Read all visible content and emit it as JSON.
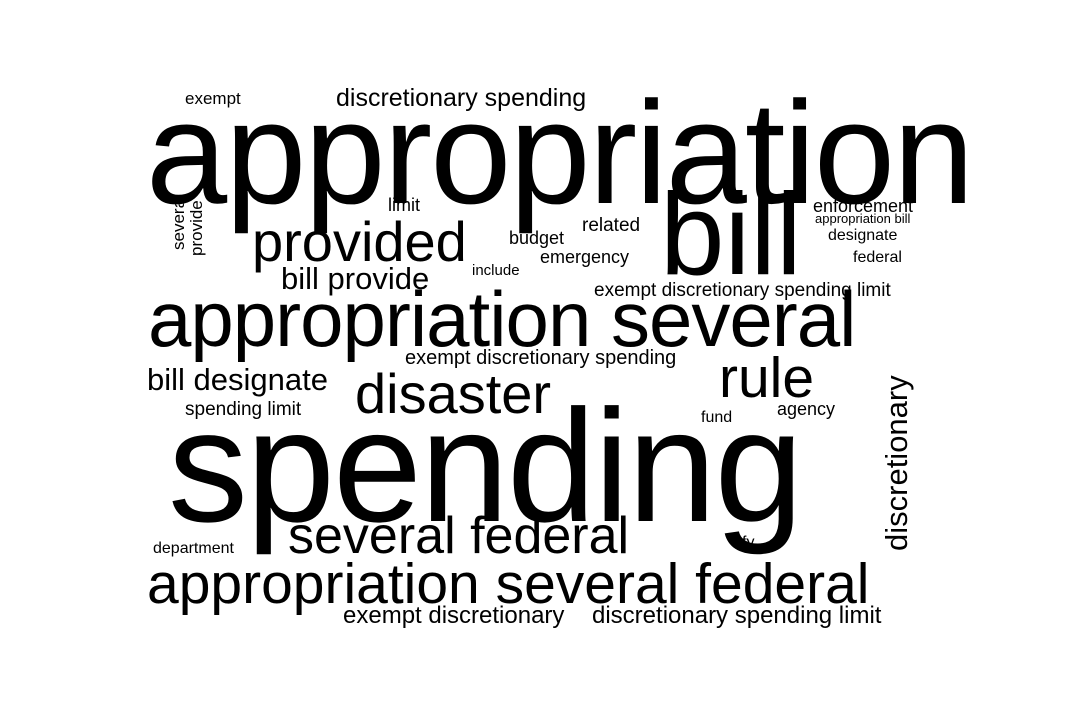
{
  "cloud": {
    "text_color": "#000000",
    "background": "#ffffff",
    "words": [
      "exempt",
      "discretionary spending",
      "appropriation",
      "several",
      "provide",
      "limit",
      "bill",
      "enforcement",
      "appropriation bill",
      "designate",
      "related",
      "provided",
      "budget",
      "emergency",
      "federal",
      "bill provide",
      "include",
      "exempt discretionary spending limit",
      "appropriation several",
      "exempt discretionary spending",
      "rule",
      "bill designate",
      "disaster",
      "discretionary",
      "spending limit",
      "agency",
      "fund",
      "spending",
      "several federal",
      "department",
      "fy",
      "appropriation several federal",
      "exempt discretionary",
      "discretionary spending limit"
    ]
  }
}
